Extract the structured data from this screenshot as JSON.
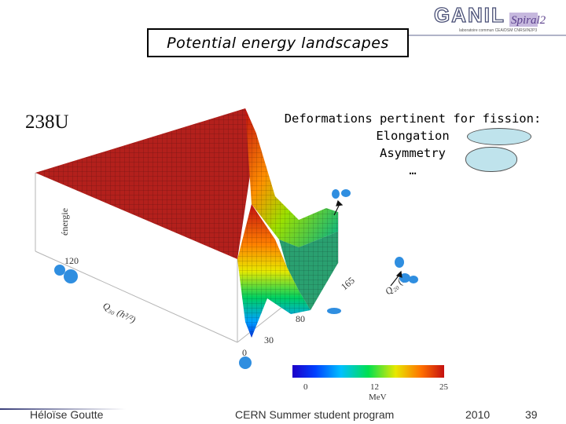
{
  "logo": {
    "name": "GANIL",
    "sub": "Spiral2",
    "tagline": "laboratoire commun CEA/DSM CNRS/IN2P3"
  },
  "slide": {
    "title": "Potential energy landscapes"
  },
  "figure": {
    "nucleus": {
      "mass": "238",
      "element": "U"
    },
    "z_axis_label": "énergie",
    "q30_label": "Q₃₀ (h³/²)",
    "q20_label": "Q₂₀ (b)",
    "q30_ticks": [
      "120",
      "0"
    ],
    "q20_ticks": [
      "30",
      "80",
      "165"
    ],
    "colorbar": {
      "ticks": [
        "0",
        "12",
        "25"
      ],
      "unit": "MeV"
    }
  },
  "fission_box": {
    "heading": "Deformations pertinent for fission:",
    "items": [
      "Elongation",
      "Asymmetry",
      "…"
    ]
  },
  "footer": {
    "author": "Héloïse Goutte",
    "event": "CERN Summer student program",
    "year": "2010",
    "page": "39"
  },
  "colors": {
    "surface_plateau": "#b3201c",
    "accent": "#3a3f7a",
    "shape_fill": "#bfe3ec"
  }
}
